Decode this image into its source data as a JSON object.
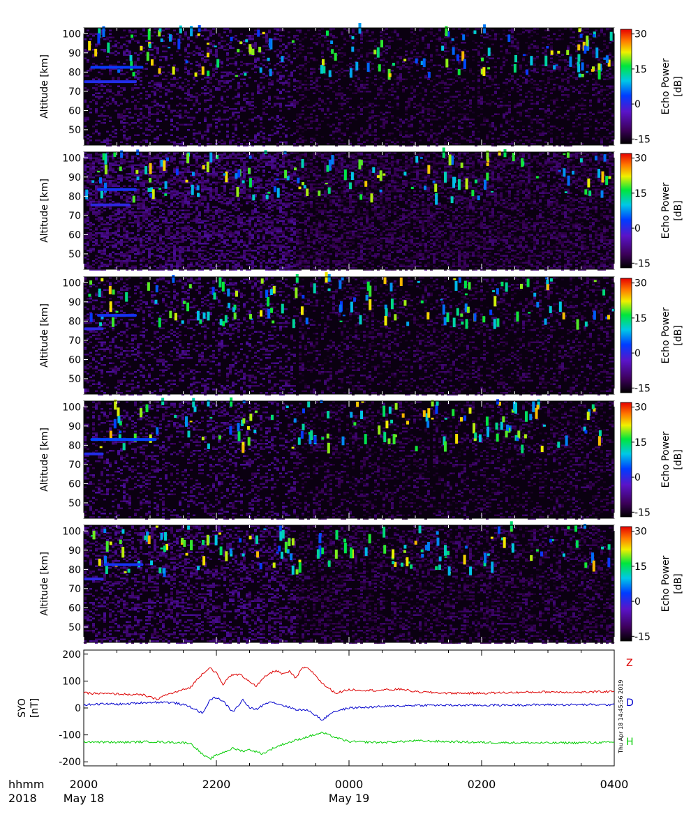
{
  "chart_data": [
    {
      "type": "heatmap",
      "panel": 1,
      "ylabel": "Altitude [km]",
      "ylim": [
        42,
        103
      ],
      "yticks": [
        50,
        60,
        70,
        80,
        90,
        100
      ],
      "xlim": [
        "2000",
        "0400"
      ],
      "colorbar": {
        "label": "Echo Power\n[dB]",
        "range": [
          -17,
          32
        ],
        "ticks": [
          30,
          15,
          0,
          -15
        ]
      },
      "features": [
        {
          "time_h": [
            0.1,
            0.9
          ],
          "alt_km": 82.5,
          "power_db": 3
        },
        {
          "time_h": [
            0.0,
            0.8
          ],
          "alt_km": 75,
          "power_db": 1
        }
      ]
    },
    {
      "type": "heatmap",
      "panel": 2,
      "ylabel": "Altitude [km]",
      "ylim": [
        42,
        103
      ],
      "yticks": [
        50,
        60,
        70,
        80,
        90,
        100
      ],
      "xlim": [
        "2000",
        "0400"
      ],
      "colorbar": {
        "label": "Echo Power\n[dB]",
        "range": [
          -17,
          32
        ],
        "ticks": [
          30,
          15,
          0,
          -15
        ]
      },
      "features": [
        {
          "time_h": [
            0.2,
            0.8
          ],
          "alt_km": 83.5,
          "power_db": 2
        },
        {
          "time_h": [
            0.1,
            0.7
          ],
          "alt_km": 75.5,
          "power_db": 0
        }
      ]
    },
    {
      "type": "heatmap",
      "panel": 3,
      "ylabel": "Altitude [km]",
      "ylim": [
        42,
        103
      ],
      "yticks": [
        50,
        60,
        70,
        80,
        90,
        100
      ],
      "xlim": [
        "2000",
        "0400"
      ],
      "colorbar": {
        "label": "Echo Power\n[dB]",
        "range": [
          -17,
          32
        ],
        "ticks": [
          30,
          15,
          0,
          -15
        ]
      },
      "features": [
        {
          "time_h": [
            0.2,
            0.8
          ],
          "alt_km": 83,
          "power_db": 2
        },
        {
          "time_h": [
            0.0,
            0.3
          ],
          "alt_km": 76,
          "power_db": 0
        }
      ]
    },
    {
      "type": "heatmap",
      "panel": 4,
      "ylabel": "Altitude [km]",
      "ylim": [
        42,
        103
      ],
      "yticks": [
        50,
        60,
        70,
        80,
        90,
        100
      ],
      "xlim": [
        "2000",
        "0400"
      ],
      "colorbar": {
        "label": "Echo Power\n[dB]",
        "range": [
          -17,
          32
        ],
        "ticks": [
          30,
          15,
          0,
          -15
        ]
      },
      "features": [
        {
          "time_h": [
            0.1,
            1.1
          ],
          "alt_km": 83,
          "power_db": 4
        },
        {
          "time_h": [
            0.0,
            0.3
          ],
          "alt_km": 75.5,
          "power_db": 1
        }
      ]
    },
    {
      "type": "heatmap",
      "panel": 5,
      "ylabel": "Altitude [km]",
      "ylim": [
        42,
        103
      ],
      "yticks": [
        50,
        60,
        70,
        80,
        90,
        100
      ],
      "xlim": [
        "2000",
        "0400"
      ],
      "colorbar": {
        "label": "Echo Power\n[dB]",
        "range": [
          -17,
          32
        ],
        "ticks": [
          30,
          15,
          0,
          -15
        ]
      },
      "features": [
        {
          "time_h": [
            0.3,
            0.9
          ],
          "alt_km": 82.5,
          "power_db": 2
        },
        {
          "time_h": [
            0.0,
            0.3
          ],
          "alt_km": 75,
          "power_db": 0
        }
      ]
    },
    {
      "type": "line",
      "panel": 6,
      "ylabel": "SYO\n[nT]",
      "ylim": [
        -215,
        215
      ],
      "yticks": [
        200,
        100,
        0,
        -100,
        -200
      ],
      "xlim": [
        "2000",
        "0400"
      ],
      "series": [
        {
          "name": "Z",
          "color": "#dd0000",
          "points": [
            [
              0,
              55
            ],
            [
              0.5,
              52
            ],
            [
              0.9,
              48
            ],
            [
              1.0,
              40
            ],
            [
              1.1,
              32
            ],
            [
              1.2,
              45
            ],
            [
              1.4,
              60
            ],
            [
              1.6,
              75
            ],
            [
              1.8,
              130
            ],
            [
              1.9,
              150
            ],
            [
              2.0,
              130
            ],
            [
              2.1,
              85
            ],
            [
              2.2,
              120
            ],
            [
              2.35,
              125
            ],
            [
              2.5,
              100
            ],
            [
              2.6,
              80
            ],
            [
              2.75,
              120
            ],
            [
              2.9,
              140
            ],
            [
              3.0,
              125
            ],
            [
              3.1,
              135
            ],
            [
              3.2,
              110
            ],
            [
              3.3,
              150
            ],
            [
              3.4,
              145
            ],
            [
              3.5,
              120
            ],
            [
              3.6,
              90
            ],
            [
              3.8,
              55
            ],
            [
              4.0,
              68
            ],
            [
              4.4,
              65
            ],
            [
              4.8,
              70
            ],
            [
              5.0,
              60
            ],
            [
              5.5,
              55
            ],
            [
              6.0,
              55
            ],
            [
              7.0,
              60
            ],
            [
              7.5,
              58
            ],
            [
              8.0,
              62
            ]
          ]
        },
        {
          "name": "D",
          "color": "#0000cc",
          "points": [
            [
              0,
              12
            ],
            [
              0.3,
              15
            ],
            [
              0.6,
              14
            ],
            [
              0.9,
              20
            ],
            [
              1.2,
              22
            ],
            [
              1.4,
              18
            ],
            [
              1.6,
              5
            ],
            [
              1.8,
              -20
            ],
            [
              1.9,
              30
            ],
            [
              2.0,
              40
            ],
            [
              2.1,
              25
            ],
            [
              2.25,
              -15
            ],
            [
              2.4,
              30
            ],
            [
              2.5,
              0
            ],
            [
              2.6,
              -5
            ],
            [
              2.8,
              25
            ],
            [
              3.0,
              10
            ],
            [
              3.2,
              -5
            ],
            [
              3.4,
              -10
            ],
            [
              3.6,
              -45
            ],
            [
              3.75,
              -15
            ],
            [
              4.0,
              0
            ],
            [
              4.5,
              5
            ],
            [
              5.0,
              10
            ],
            [
              6.0,
              10
            ],
            [
              7.0,
              12
            ],
            [
              8.0,
              12
            ]
          ]
        },
        {
          "name": "H",
          "color": "#00cc00",
          "points": [
            [
              0,
              -125
            ],
            [
              0.5,
              -128
            ],
            [
              1.0,
              -125
            ],
            [
              1.4,
              -128
            ],
            [
              1.6,
              -130
            ],
            [
              1.7,
              -150
            ],
            [
              1.8,
              -175
            ],
            [
              1.9,
              -190
            ],
            [
              2.0,
              -175
            ],
            [
              2.1,
              -165
            ],
            [
              2.25,
              -150
            ],
            [
              2.4,
              -160
            ],
            [
              2.5,
              -155
            ],
            [
              2.7,
              -170
            ],
            [
              2.85,
              -150
            ],
            [
              3.0,
              -135
            ],
            [
              3.2,
              -120
            ],
            [
              3.4,
              -105
            ],
            [
              3.6,
              -92
            ],
            [
              3.8,
              -110
            ],
            [
              4.0,
              -125
            ],
            [
              4.5,
              -128
            ],
            [
              5.0,
              -122
            ],
            [
              6.0,
              -128
            ],
            [
              7.0,
              -130
            ],
            [
              8.0,
              -128
            ]
          ]
        }
      ],
      "xticks": [
        {
          "value": 0,
          "label": "2000",
          "sublabel": "May 18"
        },
        {
          "value": 2,
          "label": "2200",
          "sublabel": ""
        },
        {
          "value": 4,
          "label": "0000",
          "sublabel": "May 19"
        },
        {
          "value": 6,
          "label": "0200",
          "sublabel": ""
        },
        {
          "value": 8,
          "label": "0400",
          "sublabel": ""
        }
      ],
      "row_labels": [
        "hhmm",
        "2018"
      ]
    }
  ],
  "timestamp": "Thu Apr 18 14:45:56 2019"
}
